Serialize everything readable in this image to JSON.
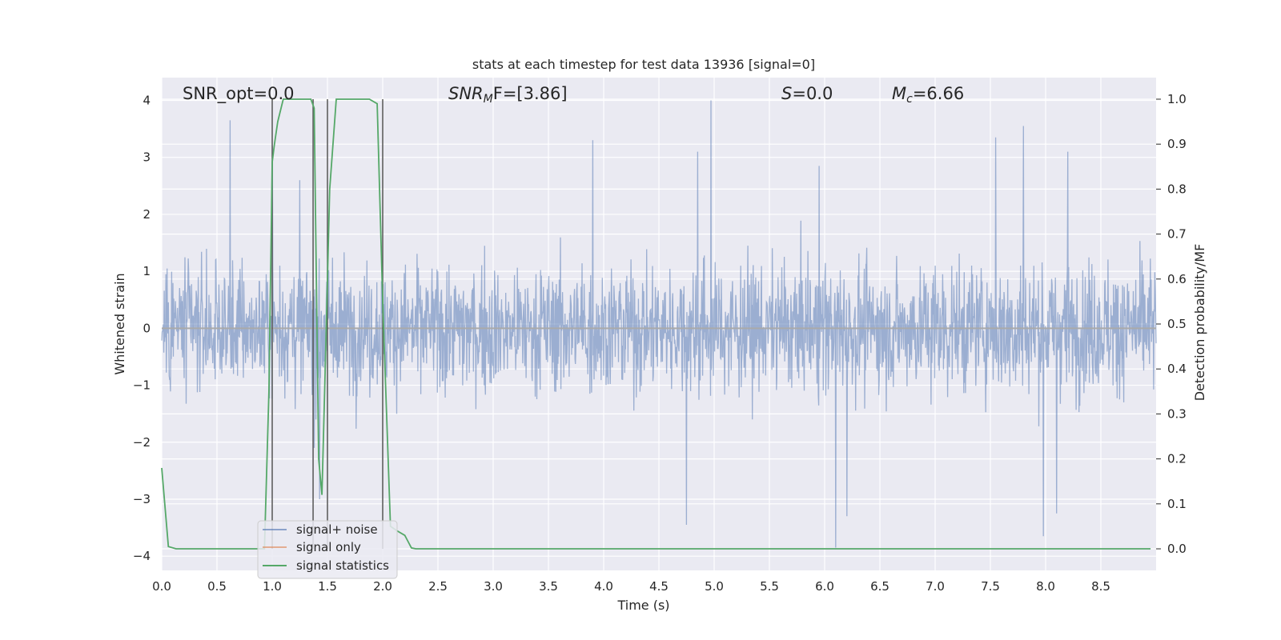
{
  "chart_data": {
    "type": "line",
    "title": "stats at each timestep for test data 13936 [signal=0]",
    "xlabel": "Time (s)",
    "ylabel_left": "Whitened strain",
    "ylabel_right": "Detection probability/MF",
    "xlim": [
      0.0,
      9.0
    ],
    "ylim_left": [
      -4.25,
      4.4
    ],
    "ylim_right": [
      -0.048,
      1.048
    ],
    "xticks": [
      "0.0",
      "0.5",
      "1.0",
      "1.5",
      "2.0",
      "2.5",
      "3.0",
      "3.5",
      "4.0",
      "4.5",
      "5.0",
      "5.5",
      "6.0",
      "6.5",
      "7.0",
      "7.5",
      "8.0",
      "8.5"
    ],
    "yticks_left": [
      "4",
      "3",
      "2",
      "1",
      "0",
      "−1",
      "−2",
      "−3",
      "−4"
    ],
    "yticks_right": [
      "1.0",
      "0.9",
      "0.8",
      "0.7",
      "0.6",
      "0.5",
      "0.4",
      "0.3",
      "0.2",
      "0.1",
      "0.0"
    ],
    "grid": true,
    "legend_position": "lower-left",
    "colors": {
      "background": "#eaeaf2",
      "grid": "#ffffff",
      "signal_noise": "#4c72b0",
      "signal_only": "#dd8452",
      "signal_statistics": "#55a868",
      "markers": "#555555"
    },
    "annotations": {
      "snr_opt": "SNR_opt=0.0",
      "snr_mf_main": "SNR",
      "snr_mf_sub": "M",
      "snr_mf_rest": "F=[3.86]",
      "s_main": "S",
      "s_rest": "=0.0",
      "mc_main": "M",
      "mc_sub": "c",
      "mc_rest": "=6.66"
    },
    "series": [
      {
        "name": "signal+ noise",
        "axis": "left",
        "description_type": "noise",
        "envelope_typical": [
          -1.5,
          1.6
        ],
        "spike_samples": [
          {
            "x": 0.62,
            "y": 3.65
          },
          {
            "x": 1.0,
            "y": 3.2
          },
          {
            "x": 1.25,
            "y": 2.6
          },
          {
            "x": 1.38,
            "y": -2.1
          },
          {
            "x": 1.43,
            "y": -3.0
          },
          {
            "x": 3.9,
            "y": 3.3
          },
          {
            "x": 4.75,
            "y": -3.45
          },
          {
            "x": 4.85,
            "y": 3.1
          },
          {
            "x": 4.97,
            "y": 4.0
          },
          {
            "x": 6.1,
            "y": -3.85
          },
          {
            "x": 6.2,
            "y": -3.3
          },
          {
            "x": 7.55,
            "y": 3.35
          },
          {
            "x": 7.8,
            "y": 3.55
          },
          {
            "x": 7.98,
            "y": -3.65
          },
          {
            "x": 8.2,
            "y": 3.1
          },
          {
            "x": 8.1,
            "y": -3.25
          },
          {
            "x": 5.95,
            "y": 2.85
          }
        ]
      },
      {
        "name": "signal only",
        "axis": "left",
        "x": [
          0.0,
          9.0
        ],
        "y": [
          0.0,
          0.0
        ]
      },
      {
        "name": "signal statistics",
        "axis": "right",
        "x": [
          0.0,
          0.06,
          0.13,
          0.25,
          0.5,
          0.75,
          0.93,
          0.97,
          1.0,
          1.02,
          1.05,
          1.1,
          1.35,
          1.38,
          1.42,
          1.45,
          1.48,
          1.52,
          1.58,
          1.88,
          1.95,
          2.0,
          2.07,
          2.13,
          2.2,
          2.26,
          2.3,
          2.5,
          3.0,
          4.0,
          5.0,
          6.0,
          7.0,
          8.0,
          8.95
        ],
        "y": [
          0.18,
          0.005,
          0.0,
          0.0,
          0.0,
          0.0,
          0.0,
          0.35,
          0.86,
          0.9,
          0.95,
          1.0,
          1.0,
          0.98,
          0.2,
          0.12,
          0.4,
          0.8,
          1.0,
          1.0,
          0.99,
          0.55,
          0.05,
          0.04,
          0.03,
          0.002,
          0.0,
          0.0,
          0.0,
          0.0,
          0.0,
          0.0,
          0.0,
          0.0,
          0.0
        ]
      }
    ],
    "vertical_markers": [
      1.0,
      1.37,
      1.5,
      2.0
    ],
    "marker_range_right": [
      0.0,
      1.0
    ]
  }
}
